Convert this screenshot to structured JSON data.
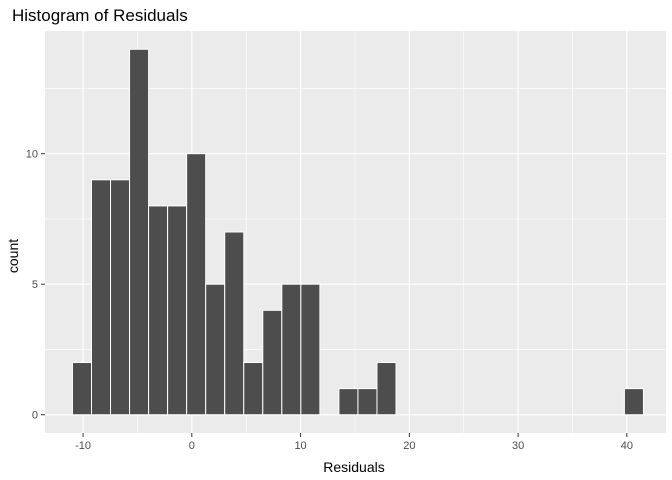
{
  "chart_data": {
    "type": "bar",
    "title": "Histogram of Residuals",
    "xlabel": "Residuals",
    "ylabel": "count",
    "bin_width": 1.75,
    "bins": [
      {
        "x": -10.1,
        "count": 2
      },
      {
        "x": -8.35,
        "count": 9
      },
      {
        "x": -6.6,
        "count": 9
      },
      {
        "x": -4.85,
        "count": 14
      },
      {
        "x": -3.1,
        "count": 8
      },
      {
        "x": -1.35,
        "count": 8
      },
      {
        "x": 0.4,
        "count": 10
      },
      {
        "x": 2.15,
        "count": 5
      },
      {
        "x": 3.9,
        "count": 7
      },
      {
        "x": 5.65,
        "count": 2
      },
      {
        "x": 7.4,
        "count": 4
      },
      {
        "x": 9.15,
        "count": 5
      },
      {
        "x": 10.9,
        "count": 5
      },
      {
        "x": 12.65,
        "count": 0
      },
      {
        "x": 14.4,
        "count": 1
      },
      {
        "x": 16.15,
        "count": 1
      },
      {
        "x": 17.9,
        "count": 2
      },
      {
        "x": 40.65,
        "count": 1
      }
    ],
    "xlim": [
      -13.5,
      43.6
    ],
    "ylim": [
      -0.7,
      14.7
    ],
    "x_ticks": [
      -10,
      0,
      10,
      20,
      30,
      40
    ],
    "x_tick_labels": [
      "-10",
      "0",
      "10",
      "20",
      "30",
      "40"
    ],
    "y_ticks": [
      0,
      5,
      10
    ],
    "y_tick_labels": [
      "0",
      "5",
      "10"
    ],
    "grid": true,
    "panel_color": "#ebebeb",
    "bar_color": "#4d4d4d",
    "bar_outline": "#ffffff"
  }
}
